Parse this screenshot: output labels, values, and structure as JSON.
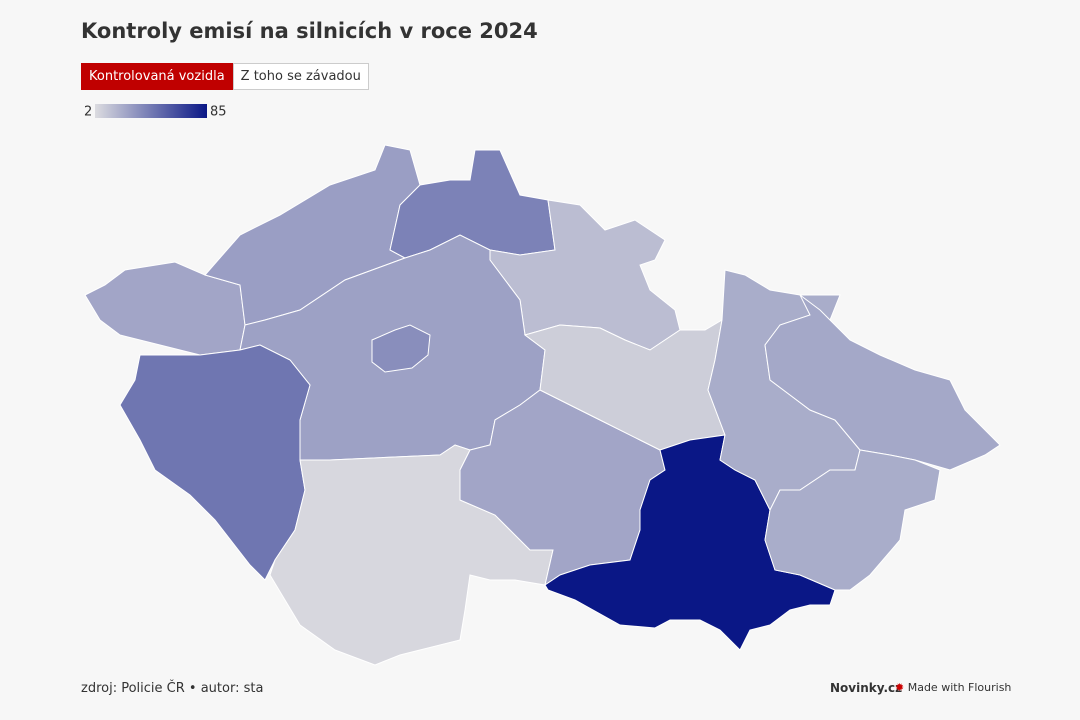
{
  "header": {
    "title": "Kontroly emisí na silnicích v roce 2024"
  },
  "tabs": [
    {
      "label": "Kontrolovaná vozidla",
      "active": true,
      "color": "#c00000"
    },
    {
      "label": "Z toho se závadou",
      "active": false
    }
  ],
  "chart_data": {
    "type": "choropleth",
    "color_scale": {
      "min": 2,
      "max": 85,
      "colors": [
        "#dcdce0",
        "#0a1786"
      ]
    },
    "regions": [
      {
        "value": 25
      },
      {
        "value": 28
      },
      {
        "value": 40
      },
      {
        "value": 15
      },
      {
        "value": 27
      },
      {
        "value": 35
      },
      {
        "value": 45
      },
      {
        "value": 4
      },
      {
        "value": 25
      },
      {
        "value": 8
      },
      {
        "value": 85
      },
      {
        "value": 22
      },
      {
        "value": 24
      },
      {
        "value": 22
      }
    ]
  },
  "footer": {
    "source": "zdroj: Policie ČR • autor: sta",
    "brand": "Novinky.cz",
    "credit": "Made with Flourish"
  }
}
